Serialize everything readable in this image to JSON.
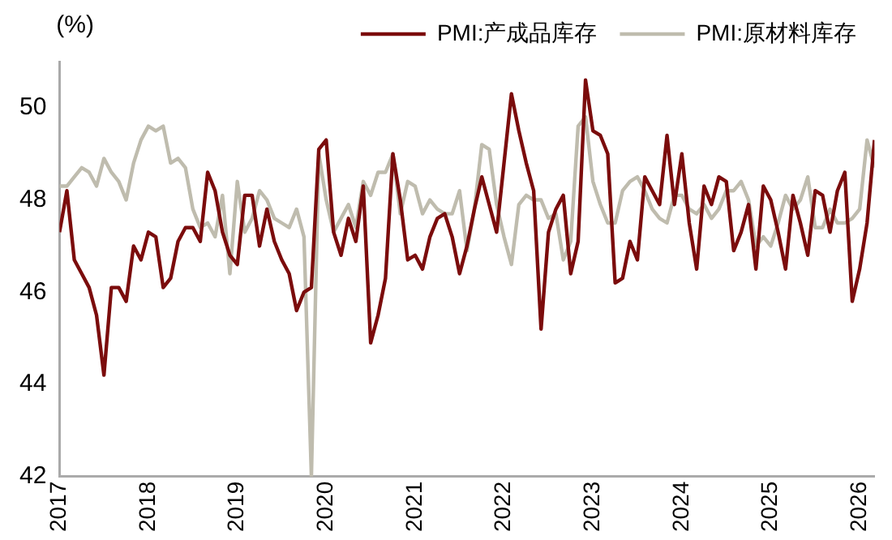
{
  "chart_data": {
    "type": "line",
    "ylabel": "(%)",
    "x": [
      "2017-01",
      "2017-02",
      "2017-03",
      "2017-04",
      "2017-05",
      "2017-06",
      "2017-07",
      "2017-08",
      "2017-09",
      "2017-10",
      "2017-11",
      "2017-12",
      "2018-01",
      "2018-02",
      "2018-03",
      "2018-04",
      "2018-05",
      "2018-06",
      "2018-07",
      "2018-08",
      "2018-09",
      "2018-10",
      "2018-11",
      "2018-12",
      "2019-01",
      "2019-02",
      "2019-03",
      "2019-04",
      "2019-05",
      "2019-06",
      "2019-07",
      "2019-08",
      "2019-09",
      "2019-10",
      "2019-11",
      "2019-12",
      "2020-01",
      "2020-02",
      "2020-03",
      "2020-04",
      "2020-05",
      "2020-06",
      "2020-07",
      "2020-08",
      "2020-09",
      "2020-10",
      "2020-11",
      "2020-12",
      "2021-01",
      "2021-02",
      "2021-03",
      "2021-04",
      "2021-05",
      "2021-06",
      "2021-07",
      "2021-08",
      "2021-09",
      "2021-10",
      "2021-11",
      "2021-12",
      "2022-01",
      "2022-02",
      "2022-03",
      "2022-04",
      "2022-05",
      "2022-06",
      "2022-07",
      "2022-08",
      "2022-09",
      "2022-10",
      "2022-11",
      "2022-12",
      "2023-01",
      "2023-02",
      "2023-03",
      "2023-04",
      "2023-05",
      "2023-06",
      "2023-07",
      "2023-08",
      "2023-09",
      "2023-10",
      "2023-11",
      "2023-12",
      "2024-01",
      "2024-02",
      "2024-03",
      "2024-04",
      "2024-05",
      "2024-06",
      "2024-07",
      "2024-08",
      "2024-09",
      "2024-10",
      "2024-11",
      "2024-12",
      "2025-01",
      "2025-02",
      "2025-03",
      "2025-04",
      "2025-05",
      "2025-06",
      "2025-07",
      "2025-08",
      "2025-09",
      "2025-10",
      "2025-11",
      "2025-12",
      "2026-01",
      "2026-02",
      "2026-03"
    ],
    "series": [
      {
        "name": "PMI:产成品库存",
        "color": "#7b0c0c",
        "values": [
          47.3,
          48.2,
          46.7,
          46.4,
          46.1,
          45.5,
          44.2,
          46.1,
          46.1,
          45.8,
          47.0,
          46.7,
          47.3,
          47.2,
          46.1,
          46.3,
          47.1,
          47.4,
          47.4,
          47.1,
          48.6,
          48.2,
          47.3,
          46.8,
          46.6,
          48.1,
          48.1,
          47.0,
          47.8,
          47.1,
          46.7,
          46.4,
          45.6,
          46.0,
          46.1,
          49.1,
          49.3,
          47.3,
          46.8,
          47.6,
          47.1,
          48.3,
          44.9,
          45.5,
          46.3,
          49.0,
          48.0,
          46.7,
          46.8,
          46.5,
          47.2,
          47.6,
          47.7,
          47.2,
          46.4,
          47.0,
          47.8,
          48.5,
          47.9,
          47.3,
          48.8,
          50.3,
          49.5,
          48.8,
          48.2,
          45.2,
          47.3,
          47.8,
          48.1,
          46.4,
          47.1,
          50.6,
          49.5,
          49.4,
          49.0,
          46.2,
          46.3,
          47.1,
          46.7,
          48.5,
          48.2,
          47.9,
          49.4,
          47.9,
          49.0,
          47.5,
          46.5,
          48.3,
          47.9,
          48.5,
          48.4,
          46.9,
          47.3,
          47.9,
          46.5,
          48.3,
          48.0,
          47.3,
          46.5,
          48.1,
          47.5,
          46.8,
          48.2,
          48.1,
          47.3,
          48.2,
          48.6,
          45.8,
          46.5,
          47.5,
          49.3
        ]
      },
      {
        "name": "PMI:原材料库存",
        "color": "#bfbcae",
        "values": [
          48.3,
          48.3,
          48.5,
          48.7,
          48.6,
          48.3,
          48.9,
          48.6,
          48.4,
          48.0,
          48.8,
          49.3,
          49.6,
          49.5,
          49.6,
          48.8,
          48.9,
          48.7,
          47.8,
          47.4,
          47.5,
          47.2,
          48.1,
          46.4,
          48.4,
          47.3,
          47.6,
          48.2,
          48.0,
          47.6,
          47.5,
          47.4,
          47.8,
          47.2,
          42,
          49.0,
          48.0,
          47.3,
          47.6,
          47.9,
          47.4,
          48.4,
          48.1,
          48.6,
          48.6,
          49.0,
          47.7,
          48.4,
          48.3,
          47.7,
          48.0,
          47.8,
          47.7,
          47.7,
          48.2,
          46.9,
          47.8,
          49.2,
          49.1,
          47.9,
          47.2,
          46.6,
          47.9,
          48.1,
          48.0,
          48.0,
          47.6,
          47.7,
          46.7,
          47.1,
          49.6,
          49.8,
          48.4,
          47.9,
          47.5,
          47.5,
          48.2,
          48.4,
          48.5,
          48.2,
          47.8,
          47.6,
          47.5,
          48.1,
          48.1,
          47.8,
          47.7,
          47.9,
          47.6,
          47.8,
          48.2,
          48.2,
          48.4,
          48.0,
          47.0,
          47.2,
          47.0,
          47.5,
          48.1,
          47.8,
          48.0,
          48.5,
          47.4,
          47.4,
          47.8,
          47.5,
          47.5,
          47.6,
          47.8,
          49.3,
          48.7
        ]
      }
    ],
    "xlim": [
      "2017-01",
      "2026-03"
    ],
    "xticks": [
      "2017",
      "2018",
      "2019",
      "2020",
      "2021",
      "2022",
      "2023",
      "2024",
      "2025",
      "2026"
    ],
    "ylim": [
      42,
      51
    ],
    "yticks": [
      42,
      44,
      46,
      48,
      50
    ],
    "grid": false,
    "legend": "top",
    "marker": "none",
    "line_style": "solid"
  }
}
